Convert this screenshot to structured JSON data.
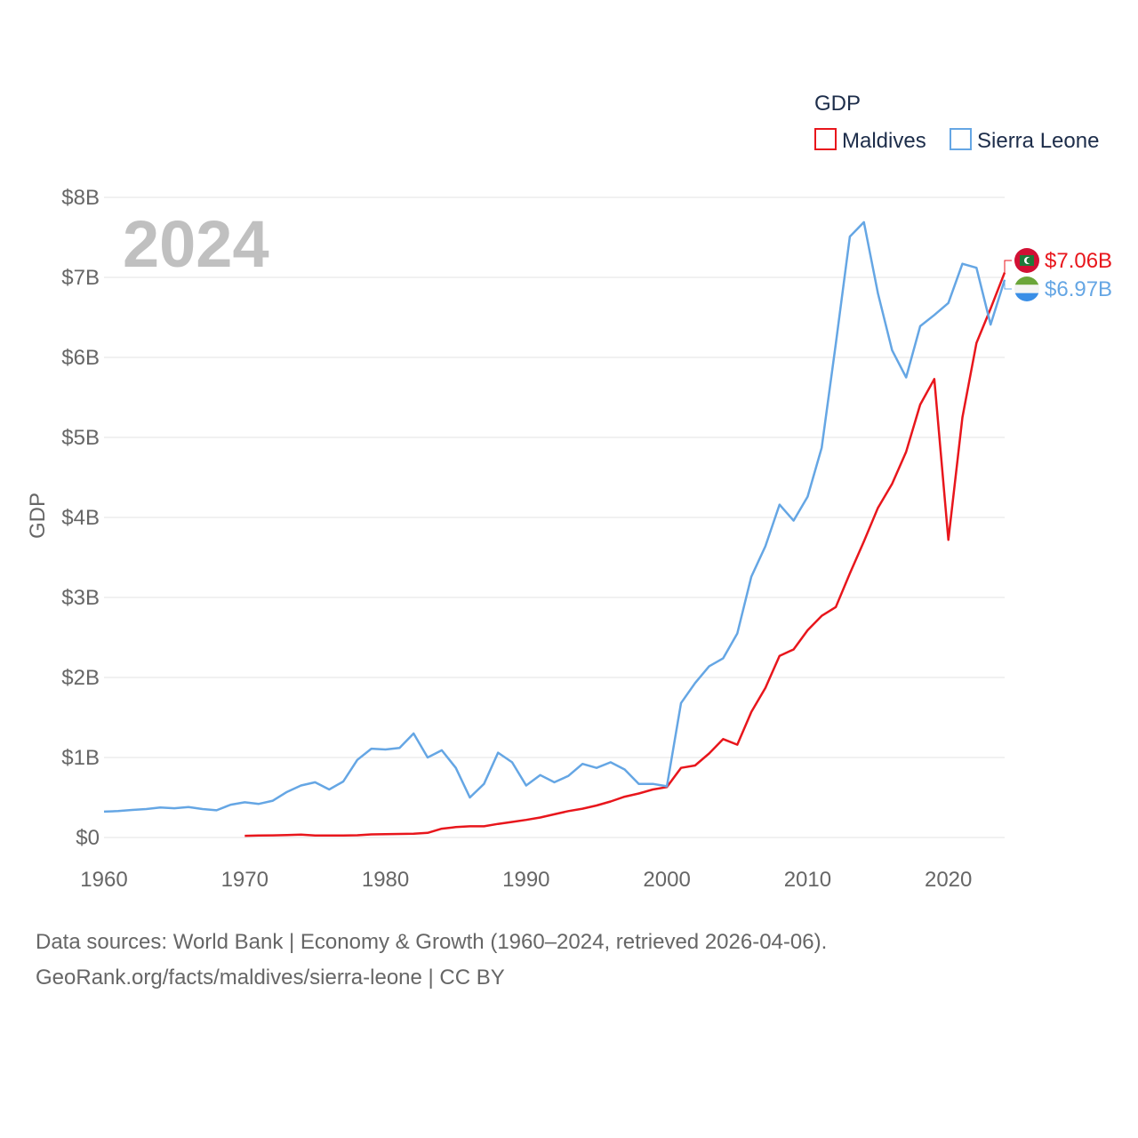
{
  "chart_data": {
    "type": "line",
    "title": "GDP",
    "year_label": "2024",
    "ylabel": "GDP",
    "xlabel": "",
    "xlim": [
      1960,
      2024
    ],
    "ylim": [
      0,
      8
    ],
    "y_unit": "billion USD",
    "x_ticks": [
      1960,
      1970,
      1980,
      1990,
      2000,
      2010,
      2020
    ],
    "y_ticks": [
      {
        "value": 0,
        "label": "$0"
      },
      {
        "value": 1,
        "label": "$1B"
      },
      {
        "value": 2,
        "label": "$2B"
      },
      {
        "value": 3,
        "label": "$3B"
      },
      {
        "value": 4,
        "label": "$4B"
      },
      {
        "value": 5,
        "label": "$5B"
      },
      {
        "value": 6,
        "label": "$6B"
      },
      {
        "value": 7,
        "label": "$7B"
      },
      {
        "value": 8,
        "label": "$8B"
      }
    ],
    "legend_position": "top-right",
    "series": [
      {
        "name": "Maldives",
        "color": "#e8161c",
        "end_label": "$7.06B",
        "flag_icon": "maldives-flag-icon",
        "x": [
          1970,
          1971,
          1972,
          1973,
          1974,
          1975,
          1976,
          1977,
          1978,
          1979,
          1980,
          1981,
          1982,
          1983,
          1984,
          1985,
          1986,
          1987,
          1988,
          1989,
          1990,
          1991,
          1992,
          1993,
          1994,
          1995,
          1996,
          1997,
          1998,
          1999,
          2000,
          2001,
          2002,
          2003,
          2004,
          2005,
          2006,
          2007,
          2008,
          2009,
          2010,
          2011,
          2012,
          2013,
          2014,
          2015,
          2016,
          2017,
          2018,
          2019,
          2020,
          2021,
          2022,
          2023,
          2024
        ],
        "values": [
          0.021,
          0.024,
          0.027,
          0.031,
          0.037,
          0.026,
          0.025,
          0.025,
          0.028,
          0.039,
          0.042,
          0.045,
          0.047,
          0.058,
          0.11,
          0.13,
          0.14,
          0.14,
          0.17,
          0.195,
          0.22,
          0.25,
          0.29,
          0.33,
          0.36,
          0.4,
          0.45,
          0.51,
          0.55,
          0.6,
          0.63,
          0.87,
          0.9,
          1.05,
          1.23,
          1.16,
          1.57,
          1.87,
          2.27,
          2.35,
          2.59,
          2.77,
          2.88,
          3.3,
          3.7,
          4.12,
          4.42,
          4.82,
          5.41,
          5.73,
          3.72,
          5.25,
          6.18,
          6.61,
          7.06
        ]
      },
      {
        "name": "Sierra Leone",
        "color": "#65a6e4",
        "end_label": "$6.97B",
        "flag_icon": "sierra-leone-flag-icon",
        "x": [
          1960,
          1961,
          1962,
          1963,
          1964,
          1965,
          1966,
          1967,
          1968,
          1969,
          1970,
          1971,
          1972,
          1973,
          1974,
          1975,
          1976,
          1977,
          1978,
          1979,
          1980,
          1981,
          1982,
          1983,
          1984,
          1985,
          1986,
          1987,
          1988,
          1989,
          1990,
          1991,
          1992,
          1993,
          1994,
          1995,
          1996,
          1997,
          1998,
          1999,
          2000,
          2001,
          2002,
          2003,
          2004,
          2005,
          2006,
          2007,
          2008,
          2009,
          2010,
          2011,
          2012,
          2013,
          2014,
          2015,
          2016,
          2017,
          2018,
          2019,
          2020,
          2021,
          2022,
          2023,
          2024
        ],
        "values": [
          0.323,
          0.33,
          0.345,
          0.355,
          0.375,
          0.365,
          0.38,
          0.355,
          0.34,
          0.41,
          0.44,
          0.42,
          0.46,
          0.57,
          0.65,
          0.69,
          0.6,
          0.7,
          0.97,
          1.11,
          1.1,
          1.12,
          1.3,
          1.0,
          1.09,
          0.87,
          0.5,
          0.67,
          1.06,
          0.94,
          0.65,
          0.78,
          0.69,
          0.77,
          0.92,
          0.87,
          0.94,
          0.85,
          0.67,
          0.67,
          0.64,
          1.68,
          1.93,
          2.14,
          2.24,
          2.55,
          3.26,
          3.64,
          4.16,
          3.96,
          4.26,
          4.87,
          6.17,
          7.51,
          7.69,
          6.8,
          6.09,
          5.75,
          6.39,
          6.53,
          6.68,
          7.17,
          7.12,
          6.41,
          6.97
        ]
      }
    ]
  },
  "legend": {
    "title": "GDP",
    "items": [
      "Maldives",
      "Sierra Leone"
    ]
  },
  "source": {
    "line1": "Data sources: World Bank | Economy & Growth (1960–2024, retrieved 2026-04-06).",
    "line2": "GeoRank.org/facts/maldives/sierra-leone | CC BY"
  },
  "colors": {
    "maldives": "#e8161c",
    "sierra_leone": "#65a6e4",
    "grid": "#e3e3e3",
    "tick_text": "#666666"
  }
}
